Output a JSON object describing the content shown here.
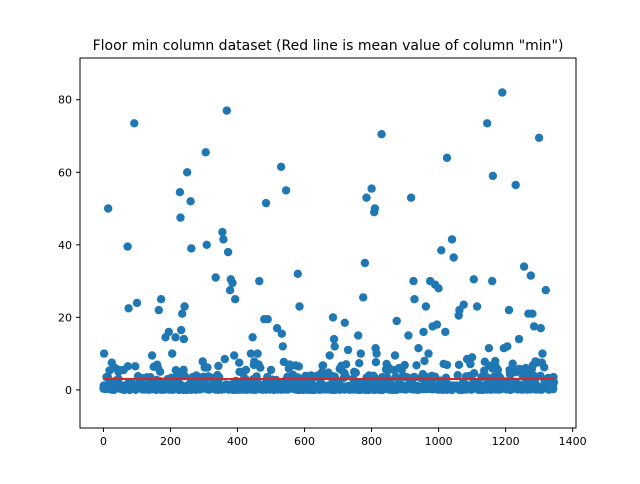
{
  "chart_data": {
    "type": "scatter",
    "title": "Floor min column dataset (Red line is mean value of column \"min\")",
    "xlabel": "",
    "ylabel": "",
    "xlim": [
      -70,
      1410
    ],
    "ylim": [
      -10.5,
      91.5
    ],
    "xticks": [
      0,
      200,
      400,
      600,
      800,
      1000,
      1200,
      1400
    ],
    "yticks": [
      0,
      20,
      40,
      60,
      80
    ],
    "x_tick_labels": [
      "0",
      "200",
      "400",
      "600",
      "800",
      "1000",
      "1200",
      "1400"
    ],
    "y_tick_labels": [
      "0",
      "20",
      "40",
      "60",
      "80"
    ],
    "grid": false,
    "legend": "none",
    "n_points_approx": 1345,
    "scatter_color": "#1f77b4",
    "mean_line": {
      "value": 3,
      "x_range": [
        0,
        1345
      ],
      "color": "#d62728"
    },
    "notable_points": [
      [
        2,
        10
      ],
      [
        14,
        50
      ],
      [
        25,
        7.5
      ],
      [
        35,
        6
      ],
      [
        45,
        5
      ],
      [
        60,
        5.5
      ],
      [
        72,
        39.5
      ],
      [
        75,
        22.5
      ],
      [
        92,
        73.5
      ],
      [
        95,
        6.5
      ],
      [
        100,
        24
      ],
      [
        140,
        3.5
      ],
      [
        145,
        9.5
      ],
      [
        165,
        22
      ],
      [
        172,
        25
      ],
      [
        185,
        14.5
      ],
      [
        195,
        16
      ],
      [
        200,
        3
      ],
      [
        205,
        10
      ],
      [
        215,
        14.5
      ],
      [
        228,
        54.5
      ],
      [
        230,
        47.5
      ],
      [
        232,
        16.5
      ],
      [
        235,
        21
      ],
      [
        240,
        14
      ],
      [
        242,
        23
      ],
      [
        250,
        60
      ],
      [
        260,
        52
      ],
      [
        262,
        39
      ],
      [
        305,
        65.5
      ],
      [
        308,
        40
      ],
      [
        335,
        31
      ],
      [
        355,
        43.5
      ],
      [
        358,
        41.5
      ],
      [
        362,
        8.5
      ],
      [
        368,
        77
      ],
      [
        372,
        38
      ],
      [
        378,
        27.5
      ],
      [
        380,
        30.5
      ],
      [
        385,
        29.5
      ],
      [
        390,
        9.5
      ],
      [
        393,
        25
      ],
      [
        405,
        7.5
      ],
      [
        425,
        5.5
      ],
      [
        440,
        10
      ],
      [
        445,
        14.5
      ],
      [
        460,
        10
      ],
      [
        465,
        30
      ],
      [
        480,
        19.5
      ],
      [
        485,
        51.5
      ],
      [
        490,
        19.5
      ],
      [
        500,
        5.5
      ],
      [
        518,
        17
      ],
      [
        530,
        61.5
      ],
      [
        532,
        15.5
      ],
      [
        535,
        12
      ],
      [
        545,
        55
      ],
      [
        580,
        32
      ],
      [
        585,
        23
      ],
      [
        620,
        4
      ],
      [
        640,
        4
      ],
      [
        675,
        9.5
      ],
      [
        685,
        20
      ],
      [
        688,
        14
      ],
      [
        690,
        12
      ],
      [
        710,
        5.5
      ],
      [
        720,
        18.5
      ],
      [
        730,
        11
      ],
      [
        748,
        5
      ],
      [
        760,
        15
      ],
      [
        768,
        10
      ],
      [
        775,
        25.5
      ],
      [
        780,
        35
      ],
      [
        785,
        53
      ],
      [
        800,
        55.5
      ],
      [
        808,
        49
      ],
      [
        810,
        50
      ],
      [
        812,
        11.5
      ],
      [
        815,
        10
      ],
      [
        830,
        70.5
      ],
      [
        850,
        5.5
      ],
      [
        870,
        9.5
      ],
      [
        875,
        19
      ],
      [
        882,
        6
      ],
      [
        890,
        5.5
      ],
      [
        910,
        15
      ],
      [
        918,
        53
      ],
      [
        925,
        30
      ],
      [
        928,
        25
      ],
      [
        940,
        11.5
      ],
      [
        955,
        16
      ],
      [
        958,
        8
      ],
      [
        962,
        23
      ],
      [
        970,
        10
      ],
      [
        975,
        30
      ],
      [
        982,
        17.5
      ],
      [
        990,
        29
      ],
      [
        995,
        18
      ],
      [
        1000,
        28
      ],
      [
        1008,
        38.5
      ],
      [
        1020,
        16
      ],
      [
        1025,
        64
      ],
      [
        1040,
        41.5
      ],
      [
        1045,
        36.5
      ],
      [
        1060,
        20.5
      ],
      [
        1062,
        22
      ],
      [
        1075,
        23.5
      ],
      [
        1085,
        8.5
      ],
      [
        1100,
        9
      ],
      [
        1105,
        30.5
      ],
      [
        1115,
        23
      ],
      [
        1145,
        73.5
      ],
      [
        1150,
        11.5
      ],
      [
        1160,
        30
      ],
      [
        1162,
        59
      ],
      [
        1170,
        6.5
      ],
      [
        1190,
        82
      ],
      [
        1195,
        11.5
      ],
      [
        1205,
        12
      ],
      [
        1210,
        22
      ],
      [
        1230,
        56.5
      ],
      [
        1240,
        14
      ],
      [
        1255,
        34
      ],
      [
        1260,
        6
      ],
      [
        1265,
        5
      ],
      [
        1268,
        21
      ],
      [
        1275,
        31.5
      ],
      [
        1280,
        21
      ],
      [
        1285,
        17.5
      ],
      [
        1300,
        69.5
      ],
      [
        1305,
        17
      ],
      [
        1310,
        10
      ],
      [
        1320,
        27.5
      ]
    ]
  }
}
